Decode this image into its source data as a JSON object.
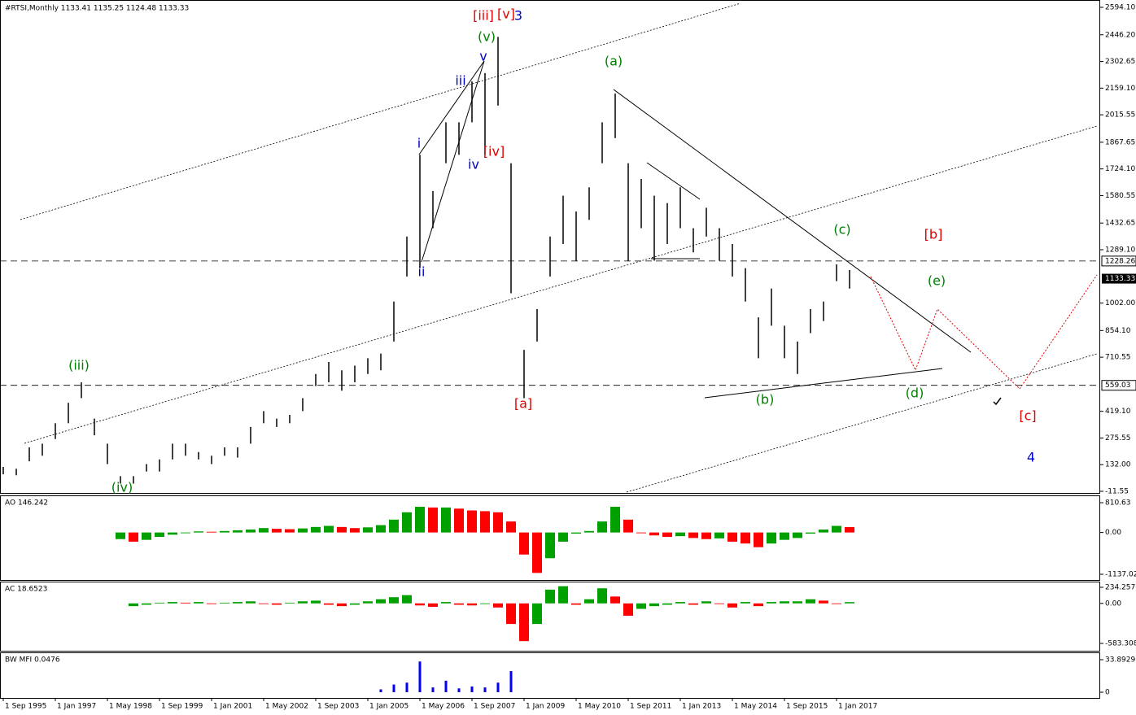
{
  "chart_data": [
    {
      "type": "hlbar",
      "title": "#RTSI,Monthly  1133.41 1135.25 1124.48 1133.33",
      "color": "#000000",
      "x": [
        "1 Sep 1995",
        "1 Jan 1996",
        "1 May 1996",
        "1 Sep 1996",
        "1 Jan 1997",
        "1 May 1997",
        "1 Sep 1997",
        "1 Jan 1998",
        "1 May 1998",
        "1 Sep 1998",
        "1 Jan 1999",
        "1 May 1999",
        "1 Sep 1999",
        "1 Jan 2000",
        "1 May 2000",
        "1 Sep 2000",
        "1 Jan 2001",
        "1 May 2001",
        "1 Sep 2001",
        "1 Jan 2002",
        "1 May 2002",
        "1 Sep 2002",
        "1 Jan 2003",
        "1 May 2003",
        "1 Sep 2003",
        "1 Jan 2004",
        "1 May 2004",
        "1 Sep 2004",
        "1 Jan 2005",
        "1 May 2005",
        "1 Sep 2005",
        "1 Jan 2006",
        "1 May 2006",
        "1 Sep 2006",
        "1 Jan 2007",
        "1 May 2007",
        "1 Sep 2007",
        "1 Jan 2008",
        "1 May 2008",
        "1 Sep 2008",
        "1 Jan 2009",
        "1 May 2009",
        "1 Sep 2009",
        "1 Jan 2010",
        "1 May 2010",
        "1 Sep 2010",
        "1 Jan 2011",
        "1 May 2011",
        "1 Sep 2011",
        "1 Jan 2012",
        "1 May 2012",
        "1 Sep 2012",
        "1 Jan 2013",
        "1 May 2013",
        "1 Sep 2013",
        "1 Jan 2014",
        "1 May 2014",
        "1 Sep 2014",
        "1 Jan 2015",
        "1 May 2015",
        "1 Sep 2015",
        "1 Jan 2016",
        "1 May 2016",
        "1 Sep 2016",
        "1 Jan 2017",
        "1 May 2017"
      ],
      "high": [
        120,
        110,
        225,
        245,
        355,
        465,
        575,
        380,
        245,
        70,
        70,
        135,
        160,
        245,
        245,
        200,
        180,
        225,
        225,
        335,
        420,
        380,
        400,
        490,
        620,
        685,
        640,
        665,
        705,
        730,
        1010,
        1360,
        1800,
        1605,
        1975,
        1975,
        2195,
        2240,
        2435,
        1755,
        750,
        970,
        1360,
        1580,
        1495,
        1625,
        1975,
        2130,
        1755,
        1670,
        1580,
        1540,
        1625,
        1405,
        1515,
        1405,
        1320,
        1190,
        925,
        1080,
        880,
        795,
        970,
        1010,
        1210,
        1180
      ],
      "low": [
        80,
        75,
        150,
        180,
        270,
        355,
        490,
        290,
        135,
        30,
        30,
        95,
        95,
        160,
        180,
        160,
        135,
        180,
        170,
        245,
        355,
        335,
        355,
        420,
        555,
        575,
        530,
        575,
        620,
        640,
        795,
        1145,
        1190,
        1405,
        1755,
        1800,
        1975,
        1800,
        2065,
        1055,
        490,
        795,
        1145,
        1320,
        1230,
        1450,
        1755,
        1890,
        1230,
        1405,
        1230,
        1320,
        1405,
        1275,
        1360,
        1230,
        1145,
        1010,
        705,
        880,
        705,
        620,
        840,
        905,
        1120,
        1080
      ],
      "ylim": [
        -11.55,
        2594.1
      ],
      "yticks": [
        {
          "value": 2594.1,
          "label": "2594.10"
        },
        {
          "value": 2446.2,
          "label": "2446.20"
        },
        2302.65,
        {
          "value": 2159.1,
          "label": "2159.10"
        },
        2015.55,
        1867.65,
        {
          "value": 1724.1,
          "label": "1724.10"
        },
        1580.55,
        1432.65,
        {
          "value": 1289.1,
          "label": "1289.10"
        },
        {
          "value": 1002,
          "label": "1002.00"
        },
        {
          "value": 854.1,
          "label": "854.10"
        },
        710.55,
        {
          "value": 419.1,
          "label": "419.10"
        },
        275.55,
        {
          "value": 132,
          "label": "132.00"
        },
        -11.55
      ],
      "xticks": [
        "1 Sep 1995",
        "1 Jan 1997",
        "1 May 1998",
        "1 Sep 1999",
        "1 Jan 2001",
        "1 May 2002",
        "1 Sep 2003",
        "1 Jan 2005",
        "1 May 2006",
        "1 Sep 2007",
        "1 Jan 2009",
        "1 May 2010",
        "1 Sep 2011",
        "1 Jan 2013",
        "1 May 2014",
        "1 Sep 2015",
        "1 Jan 2017"
      ],
      "levels": [
        1228.26,
        559.03
      ],
      "current": 1133.33,
      "annotations": [
        {
          "text": "(iii)",
          "color": "#008000"
        },
        {
          "text": "(iv)",
          "color": "#008000"
        },
        {
          "text": "i",
          "color": "#0000cc"
        },
        {
          "text": "ii",
          "color": "#0000cc"
        },
        {
          "text": "iii",
          "color": "#0000cc"
        },
        {
          "text": "iv",
          "color": "#0000cc"
        },
        {
          "text": "v",
          "color": "#0000cc"
        },
        {
          "text": "(v)",
          "color": "#008000"
        },
        {
          "text": "[iii]",
          "color": "#e00000"
        },
        {
          "text": "[v]",
          "color": "#e00000"
        },
        {
          "text": "3",
          "color": "#0000cc"
        },
        {
          "text": "[iv]",
          "color": "#e00000"
        },
        {
          "text": "[a]",
          "color": "#e00000"
        },
        {
          "text": "(a)",
          "color": "#008000"
        },
        {
          "text": "(b)",
          "color": "#008000"
        },
        {
          "text": "(c)",
          "color": "#008000"
        },
        {
          "text": "[b]",
          "color": "#e00000"
        },
        {
          "text": "(e)",
          "color": "#008000"
        },
        {
          "text": "(d)",
          "color": "#008000"
        },
        {
          "text": "[c]",
          "color": "#e00000"
        },
        {
          "text": "4",
          "color": "#0000cc"
        }
      ]
    },
    {
      "type": "histogram-osc",
      "title": "AO 146.242",
      "up_color": "#00a000",
      "down_color": "#ff0000",
      "values": [
        null,
        null,
        null,
        null,
        null,
        null,
        null,
        null,
        null,
        -180,
        -250,
        -200,
        -120,
        -60,
        -20,
        30,
        20,
        40,
        60,
        80,
        120,
        100,
        90,
        110,
        150,
        180,
        150,
        120,
        140,
        200,
        350,
        550,
        700,
        680,
        680,
        650,
        600,
        580,
        550,
        300,
        -600,
        -1100,
        -700,
        -250,
        -30,
        40,
        300,
        700,
        350,
        -20,
        -80,
        -120,
        -100,
        -150,
        -180,
        -160,
        -250,
        -300,
        -400,
        -300,
        -200,
        -150,
        -30,
        80,
        180,
        146.242
      ],
      "ylim": [
        -1137.025,
        810.63
      ],
      "yticks": [
        810.63,
        {
          "value": 0,
          "label": "0.00"
        },
        -1137.025
      ]
    },
    {
      "type": "histogram-osc",
      "title": "AC 18.6523",
      "up_color": "#00a000",
      "down_color": "#ff0000",
      "values": [
        null,
        null,
        null,
        null,
        null,
        null,
        null,
        null,
        null,
        null,
        -40,
        -20,
        10,
        20,
        10,
        20,
        -10,
        10,
        20,
        30,
        -10,
        -20,
        10,
        30,
        40,
        -20,
        -40,
        -20,
        30,
        60,
        90,
        120,
        -30,
        -50,
        20,
        -20,
        -30,
        -10,
        -60,
        -300,
        -550,
        -300,
        200,
        250,
        -20,
        60,
        220,
        100,
        -180,
        -80,
        -40,
        -20,
        20,
        -20,
        30,
        -10,
        -60,
        20,
        -40,
        20,
        30,
        30,
        60,
        40,
        -10,
        18.6523
      ],
      "ylim": [
        -583.3082,
        234.2576
      ],
      "yticks": [
        234.2576,
        {
          "value": 0,
          "label": "0.00"
        },
        -583.3082
      ]
    },
    {
      "type": "histogram",
      "title": "BW MFI 0.0476",
      "color": "#0000ff",
      "values": [
        null,
        null,
        null,
        null,
        null,
        null,
        null,
        null,
        null,
        null,
        null,
        null,
        null,
        null,
        null,
        null,
        null,
        null,
        null,
        null,
        null,
        null,
        null,
        null,
        null,
        null,
        null,
        null,
        null,
        3,
        8,
        10,
        32,
        5,
        12,
        4,
        6,
        5,
        10,
        22,
        null,
        null,
        null,
        null,
        null,
        null,
        null,
        null,
        null,
        null,
        null,
        null,
        null,
        null,
        null,
        null,
        null,
        null,
        null,
        null,
        null,
        null,
        null,
        null,
        null,
        null
      ],
      "ylim": [
        0,
        33.8929
      ],
      "yticks": [
        33.8929,
        0
      ]
    }
  ]
}
